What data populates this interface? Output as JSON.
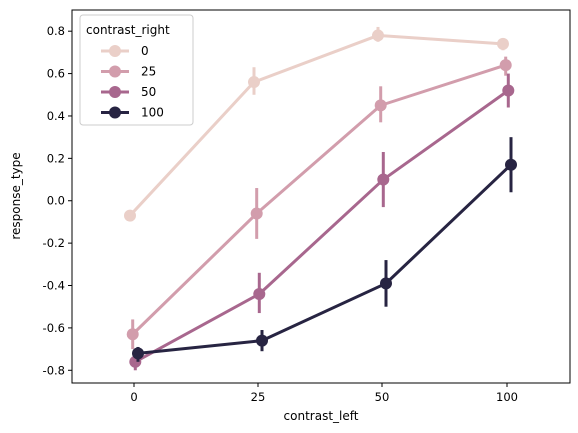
{
  "chart_data": {
    "type": "line",
    "subtype": "pointplot-with-error-bars",
    "xlabel": "contrast_left",
    "ylabel": "response_type",
    "categories": [
      "0",
      "25",
      "50",
      "100"
    ],
    "ylim": [
      -0.86,
      0.9
    ],
    "yticks": [
      "-0.8",
      "-0.6",
      "-0.4",
      "-0.2",
      "0.0",
      "0.2",
      "0.4",
      "0.6",
      "0.8"
    ],
    "ytick_values": [
      -0.8,
      -0.6,
      -0.4,
      -0.2,
      0.0,
      0.2,
      0.4,
      0.6,
      0.8
    ],
    "grid": false,
    "legend": {
      "title": "contrast_right",
      "placement": "top-left"
    },
    "series": [
      {
        "name": "0",
        "color": "#eacfc8",
        "values": [
          -0.07,
          0.56,
          0.78,
          0.74
        ],
        "err_low": [
          -0.09,
          0.5,
          0.75,
          0.71
        ],
        "err_high": [
          -0.05,
          0.63,
          0.82,
          0.76
        ]
      },
      {
        "name": "25",
        "color": "#d29dac",
        "values": [
          -0.63,
          -0.06,
          0.45,
          0.64
        ],
        "err_low": [
          -0.7,
          -0.18,
          0.37,
          0.59
        ],
        "err_high": [
          -0.56,
          0.06,
          0.54,
          0.68
        ]
      },
      {
        "name": "50",
        "color": "#a8678e",
        "values": [
          -0.76,
          -0.44,
          0.1,
          0.52
        ],
        "err_low": [
          -0.8,
          -0.53,
          -0.03,
          0.44
        ],
        "err_high": [
          -0.73,
          -0.34,
          0.23,
          0.6
        ]
      },
      {
        "name": "100",
        "color": "#272442",
        "values": [
          -0.72,
          -0.66,
          -0.39,
          0.17
        ],
        "err_low": [
          -0.76,
          -0.71,
          -0.5,
          0.04
        ],
        "err_high": [
          -0.69,
          -0.61,
          -0.28,
          0.3
        ]
      }
    ]
  }
}
